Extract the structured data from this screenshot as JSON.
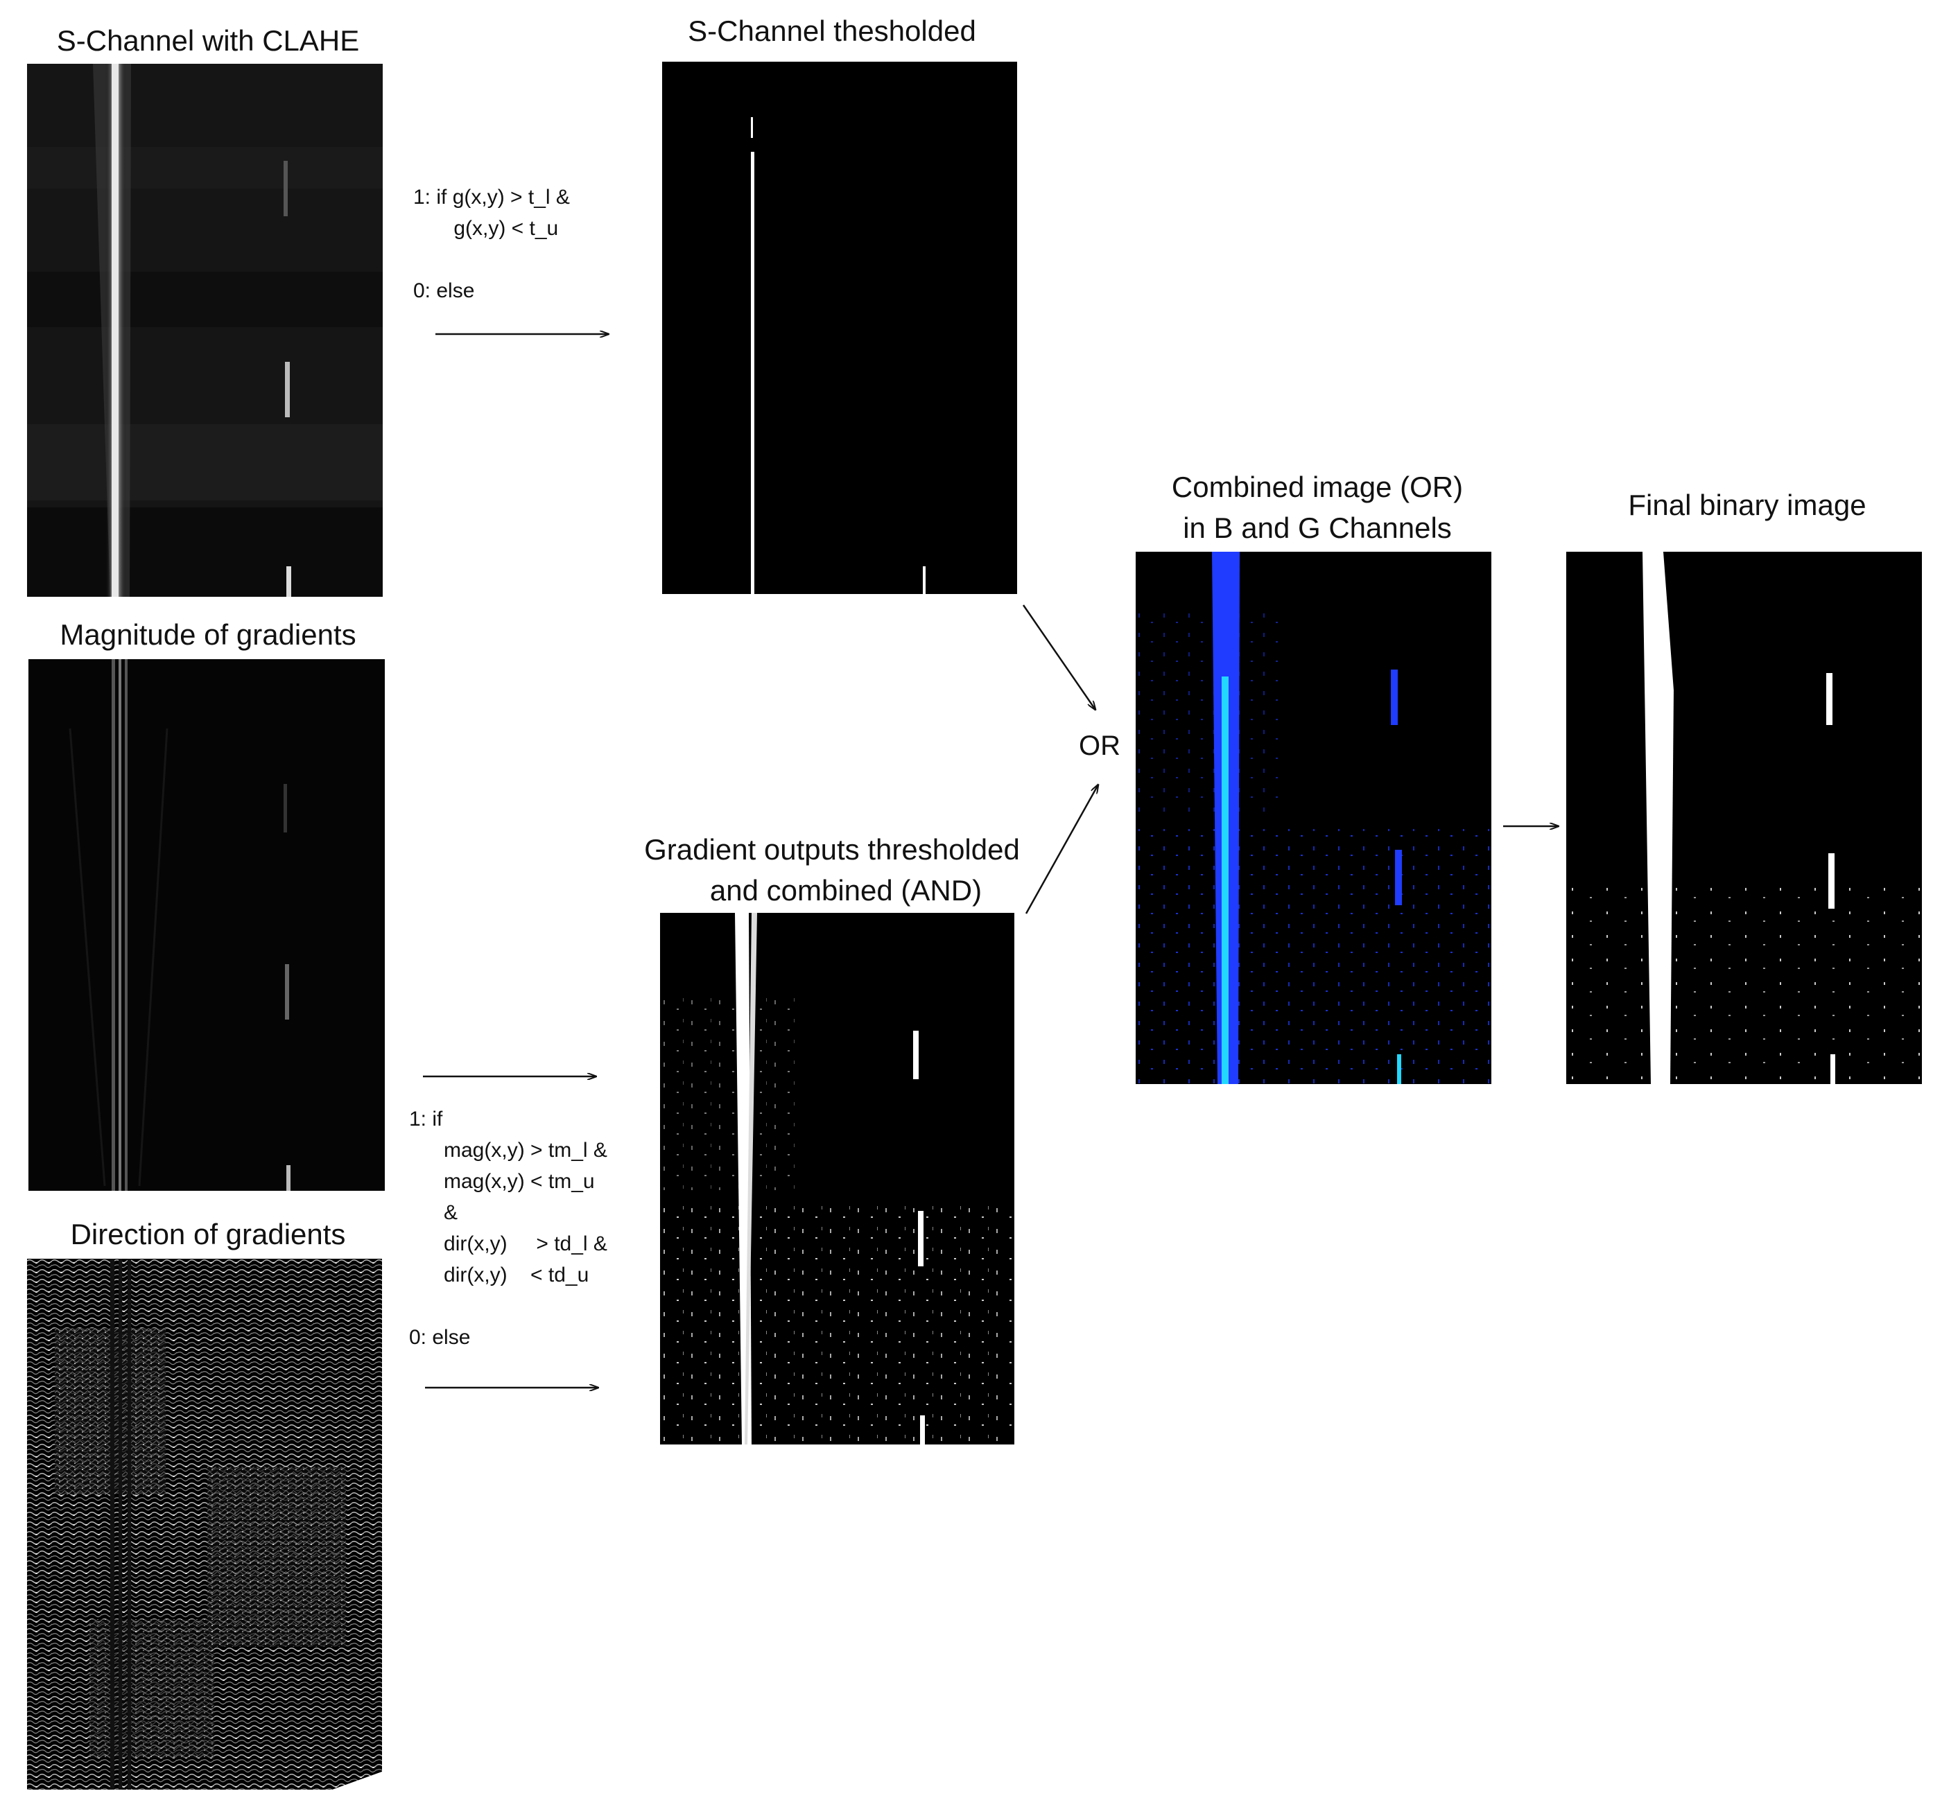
{
  "panels": {
    "s_clahe": {
      "title": "S-Channel with CLAHE"
    },
    "magnitude": {
      "title": "Magnitude of gradients"
    },
    "direction": {
      "title": "Direction of gradients"
    },
    "s_thresh": {
      "title": "S-Channel thesholded"
    },
    "grad_combined": {
      "title_line1": "Gradient outputs thresholded",
      "title_line2": "and combined (AND)"
    },
    "combined_or": {
      "title_line1": "Combined image (OR)",
      "title_line2": "in B and G Channels"
    },
    "final": {
      "title": "Final binary image"
    }
  },
  "rules": {
    "s_rule": {
      "line1": "1: if g(x,y) > t_l &",
      "line2": "       g(x,y) < t_u",
      "line3": "0: else"
    },
    "grad_rule": {
      "line1": "1: if",
      "line2": "      mag(x,y) > tm_l &",
      "line3": "      mag(x,y) < tm_u",
      "line4": "      &",
      "line5": "      dir(x,y)     > td_l &",
      "line6": "      dir(x,y)    < td_u",
      "line7": "0: else"
    }
  },
  "operators": {
    "or_label": "OR"
  },
  "colors": {
    "background": "#ffffff",
    "panel": "#000000",
    "lane_blue": "#1f3cff",
    "lane_cyan": "#22d8ff"
  }
}
